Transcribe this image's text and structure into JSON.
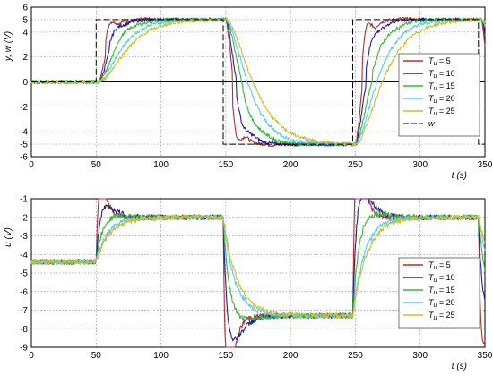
{
  "chart_data": [
    {
      "type": "line",
      "ylabel": "y, w (V)",
      "xlabel": "t (s)",
      "xlim": [
        0,
        350
      ],
      "ylim": [
        -6,
        6
      ],
      "xticks": [
        "0",
        "50",
        "100",
        "150",
        "200",
        "250",
        "300",
        "350"
      ],
      "yticks": [
        "6",
        "5",
        "4",
        "2",
        "0",
        "-2",
        "-4",
        "-5",
        "-6"
      ],
      "ytick_values": [
        6,
        5,
        4,
        2,
        0,
        -2,
        -4,
        -5,
        -6
      ],
      "grid": true,
      "legend_position": "right",
      "series": [
        {
          "name": "Tᵤ = 5",
          "label_main": "T",
          "label_sub": "u",
          "label_rest": " = 5",
          "color": "#b03030",
          "tau": 3.5,
          "overshoot": 0.25
        },
        {
          "name": "Tᵤ = 10",
          "label_main": "T",
          "label_sub": "u",
          "label_rest": " = 10",
          "color": "#2020a0",
          "tau": 5,
          "overshoot": 0.12
        },
        {
          "name": "Tᵤ = 15",
          "label_main": "T",
          "label_sub": "u",
          "label_rest": " = 15",
          "color": "#33bb33",
          "tau": 7.5,
          "overshoot": 0.05
        },
        {
          "name": "Tᵤ = 20",
          "label_main": "T",
          "label_sub": "u",
          "label_rest": " = 20",
          "color": "#55ccee",
          "tau": 10,
          "overshoot": 0
        },
        {
          "name": "Tᵤ = 25",
          "label_main": "T",
          "label_sub": "u",
          "label_rest": " = 25",
          "color": "#c8c030",
          "tau": 12.5,
          "overshoot": 0
        },
        {
          "name": "w",
          "label_main": "w",
          "label_sub": "",
          "label_rest": "",
          "color": "#000000",
          "dashed": true
        }
      ],
      "setpoint_steps": [
        {
          "t": 0,
          "value": 0
        },
        {
          "t": 50,
          "value": 5
        },
        {
          "t": 148,
          "value": -5
        },
        {
          "t": 248,
          "value": 5
        },
        {
          "t": 345,
          "value": -5
        }
      ]
    },
    {
      "type": "line",
      "ylabel": "u (V)",
      "xlabel": "t (s)",
      "xlim": [
        0,
        350
      ],
      "ylim": [
        -9,
        -1
      ],
      "xticks": [
        "0",
        "50",
        "100",
        "150",
        "200",
        "250",
        "300",
        "350"
      ],
      "yticks": [
        "-1",
        "-2",
        "-3",
        "-4",
        "-5",
        "-6",
        "-7",
        "-8",
        "-9"
      ],
      "ytick_values": [
        -1,
        -2,
        -3,
        -4,
        -5,
        -6,
        -7,
        -8,
        -9
      ],
      "grid": true,
      "legend_position": "right",
      "series": [
        {
          "name": "Tᵤ = 5",
          "label_main": "T",
          "label_sub": "u",
          "label_rest": " = 5",
          "color": "#b03030",
          "tau": 3,
          "peak": 1.0
        },
        {
          "name": "Tᵤ = 10",
          "label_main": "T",
          "label_sub": "u",
          "label_rest": " = 10",
          "color": "#2020a0",
          "tau": 5,
          "peak": 0.5
        },
        {
          "name": "Tᵤ = 15",
          "label_main": "T",
          "label_sub": "u",
          "label_rest": " = 15",
          "color": "#33bb33",
          "tau": 7,
          "peak": 0.2
        },
        {
          "name": "Tᵤ = 20",
          "label_main": "T",
          "label_sub": "u",
          "label_rest": " = 20",
          "color": "#55ccee",
          "tau": 9,
          "peak": 0
        },
        {
          "name": "Tᵤ = 25",
          "label_main": "T",
          "label_sub": "u",
          "label_rest": " = 25",
          "color": "#c8c030",
          "tau": 11,
          "peak": 0
        }
      ],
      "levels": [
        {
          "t": 0,
          "value": -4.4
        },
        {
          "t": 50,
          "value": -2.0
        },
        {
          "t": 148,
          "value": -7.3
        },
        {
          "t": 248,
          "value": -2.0
        },
        {
          "t": 345,
          "value": -6.0
        }
      ]
    }
  ]
}
